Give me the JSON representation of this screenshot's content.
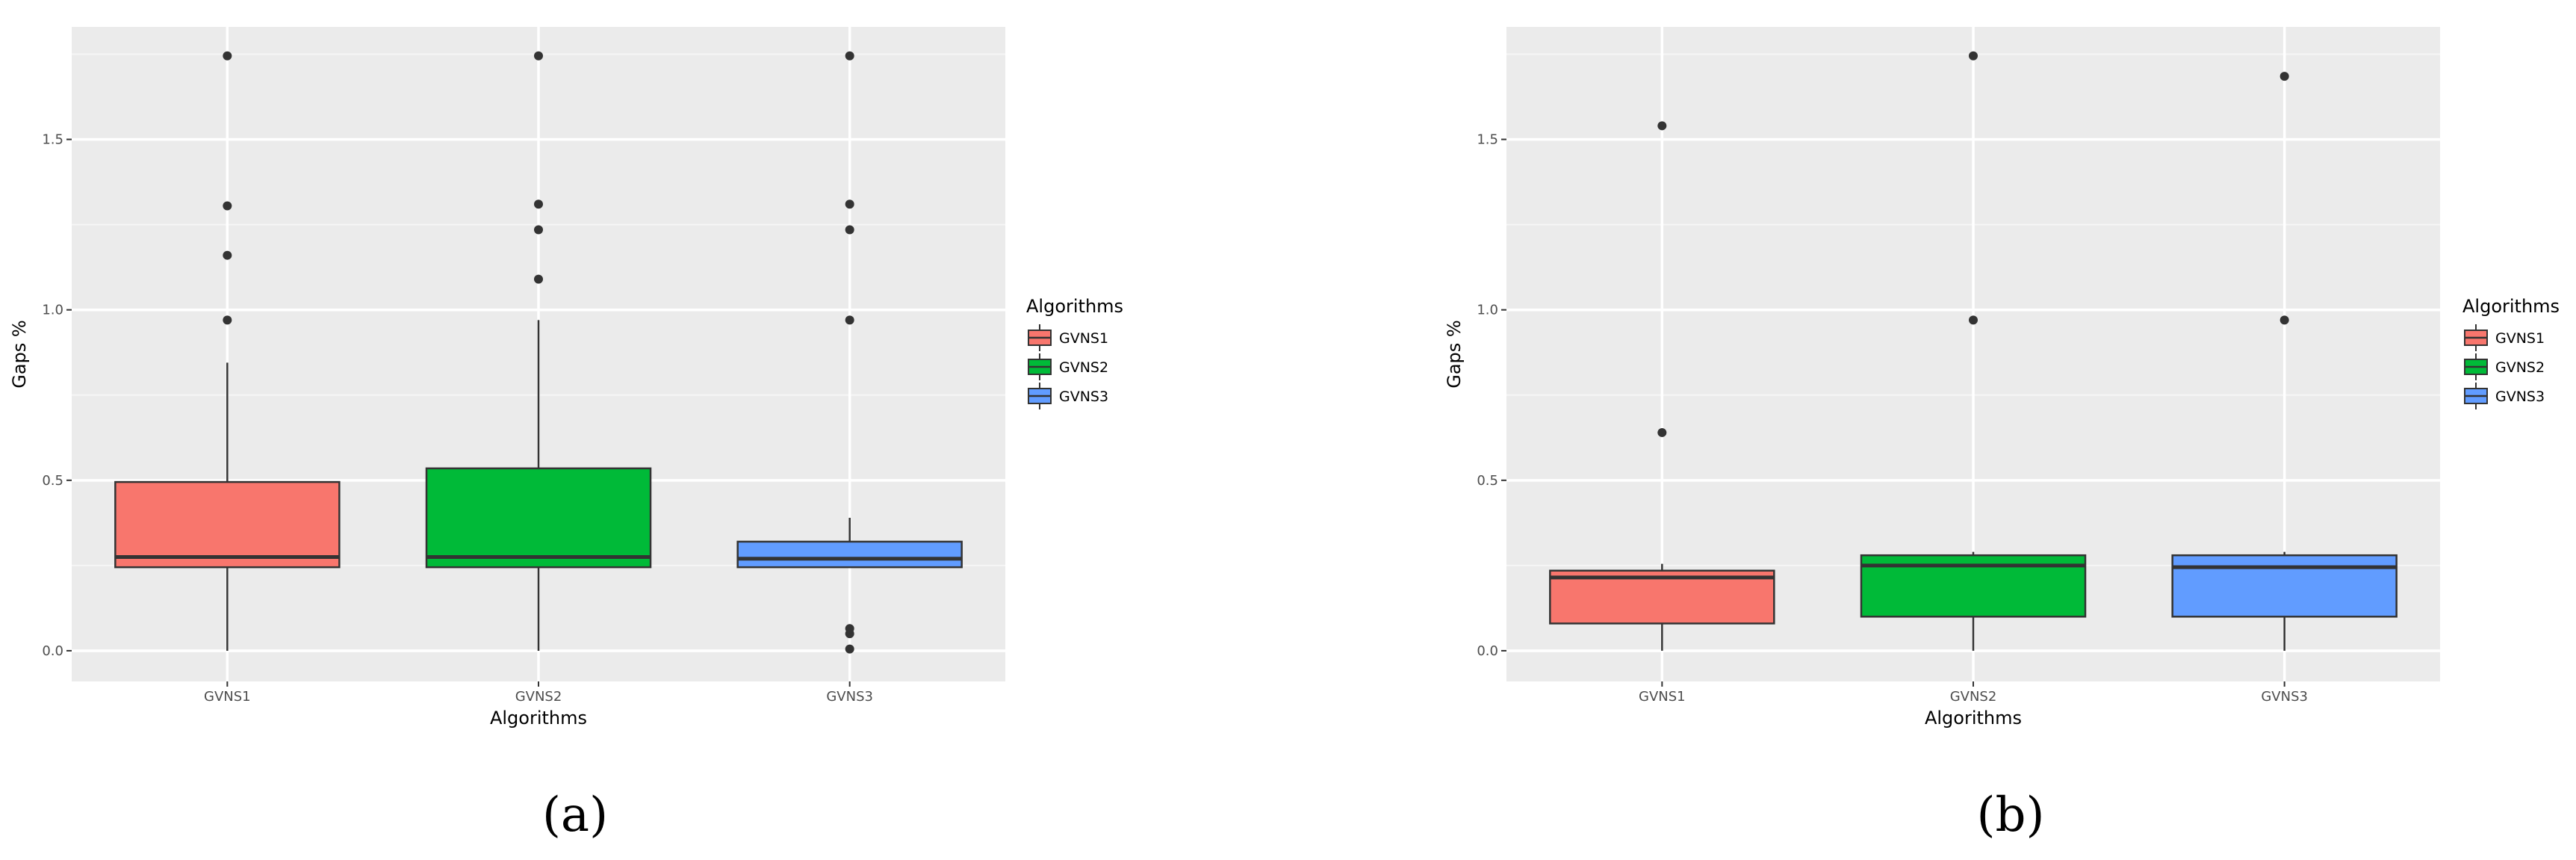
{
  "chart_data": [
    {
      "type": "box",
      "caption": "(a)",
      "xlabel": "Algorithms",
      "ylabel": "Gaps %",
      "ylim": [
        -0.09,
        1.83
      ],
      "yticks": [
        0.0,
        0.5,
        1.0,
        1.5
      ],
      "ytick_labels": [
        "0.0",
        "0.5",
        "1.0",
        "1.5"
      ],
      "grid": true,
      "categories": [
        "GVNS1",
        "GVNS2",
        "GVNS3"
      ],
      "legend": {
        "title": "Algorithms",
        "position": "right",
        "entries": [
          "GVNS1",
          "GVNS2",
          "GVNS3"
        ]
      },
      "boxes": [
        {
          "name": "GVNS1",
          "color": "#F8766D",
          "whisker_low": 0.0,
          "q1": 0.245,
          "median": 0.275,
          "q3": 0.495,
          "whisker_high": 0.845,
          "outliers": [
            0.97,
            1.16,
            1.305,
            1.745
          ]
        },
        {
          "name": "GVNS2",
          "color": "#00BA38",
          "whisker_low": 0.0,
          "q1": 0.245,
          "median": 0.275,
          "q3": 0.535,
          "whisker_high": 0.97,
          "outliers": [
            1.09,
            1.235,
            1.31,
            1.745
          ]
        },
        {
          "name": "GVNS3",
          "color": "#619CFF",
          "whisker_low": 0.245,
          "q1": 0.245,
          "median": 0.27,
          "q3": 0.32,
          "whisker_high": 0.39,
          "outliers": [
            0.005,
            0.05,
            0.065,
            0.97,
            1.235,
            1.31,
            1.745
          ]
        }
      ]
    },
    {
      "type": "box",
      "caption": "(b)",
      "xlabel": "Algorithms",
      "ylabel": "Gaps %",
      "ylim": [
        -0.09,
        1.83
      ],
      "yticks": [
        0.0,
        0.5,
        1.0,
        1.5
      ],
      "ytick_labels": [
        "0.0",
        "0.5",
        "1.0",
        "1.5"
      ],
      "grid": true,
      "categories": [
        "GVNS1",
        "GVNS2",
        "GVNS3"
      ],
      "legend": {
        "title": "Algorithms",
        "position": "right",
        "entries": [
          "GVNS1",
          "GVNS2",
          "GVNS3"
        ]
      },
      "boxes": [
        {
          "name": "GVNS1",
          "color": "#F8766D",
          "whisker_low": 0.0,
          "q1": 0.08,
          "median": 0.215,
          "q3": 0.235,
          "whisker_high": 0.255,
          "outliers": [
            0.64,
            1.54
          ]
        },
        {
          "name": "GVNS2",
          "color": "#00BA38",
          "whisker_low": 0.0,
          "q1": 0.1,
          "median": 0.25,
          "q3": 0.28,
          "whisker_high": 0.29,
          "outliers": [
            0.97,
            1.745
          ]
        },
        {
          "name": "GVNS3",
          "color": "#619CFF",
          "whisker_low": 0.0,
          "q1": 0.1,
          "median": 0.245,
          "q3": 0.28,
          "whisker_high": 0.29,
          "outliers": [
            0.97,
            1.685
          ]
        }
      ]
    }
  ]
}
